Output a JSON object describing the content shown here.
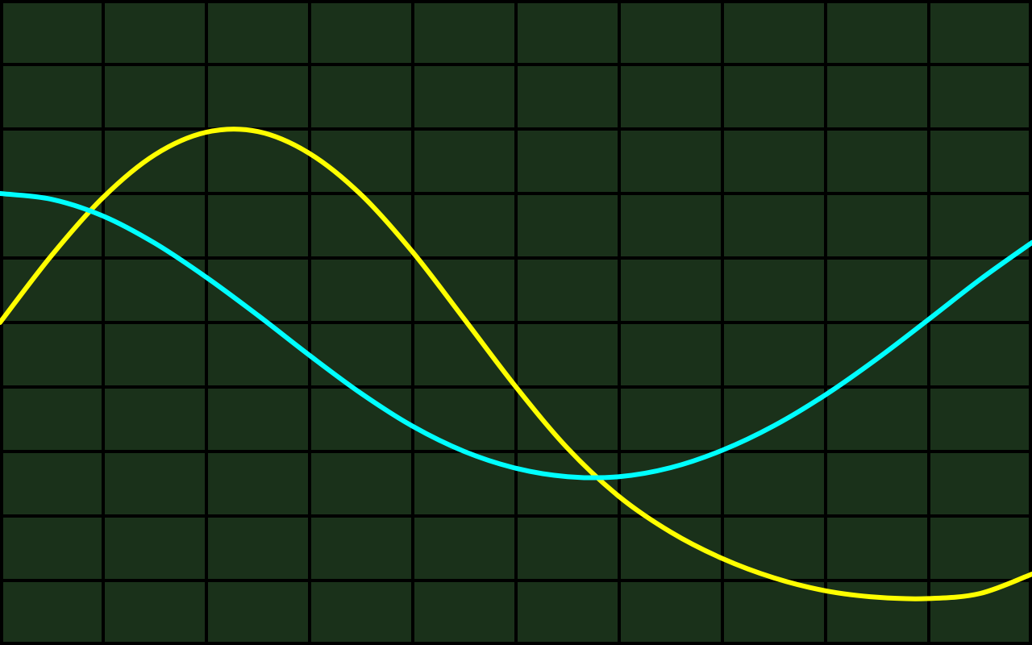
{
  "chart_data": {
    "type": "line",
    "title": "",
    "xlabel": "",
    "ylabel": "",
    "xlim": [
      0,
      10
    ],
    "ylim": [
      -5,
      5
    ],
    "grid": true,
    "legend": "none",
    "series": [
      {
        "color": "#ffff00",
        "x": [
          0,
          0.5,
          1,
          1.5,
          2,
          2.5,
          3,
          3.5,
          4,
          4.5,
          5,
          5.5,
          6,
          6.5,
          7,
          7.5,
          8,
          8.5,
          9,
          9.5,
          10
        ],
        "values": [
          0.0,
          1.04,
          1.94,
          2.6,
          2.95,
          2.96,
          2.62,
          1.98,
          1.09,
          0.05,
          -1.0,
          -1.95,
          -2.7,
          -3.25,
          -3.66,
          -3.96,
          -4.16,
          -4.26,
          -4.28,
          -4.2,
          -3.9
        ]
      },
      {
        "color": "#00ffff",
        "x": [
          0,
          0.5,
          1,
          1.5,
          2,
          2.5,
          3,
          3.5,
          4,
          4.5,
          5,
          5.5,
          6,
          6.5,
          7,
          7.5,
          8,
          8.5,
          9,
          9.5,
          10
        ],
        "values": [
          2.0,
          1.91,
          1.65,
          1.23,
          0.7,
          0.11,
          -0.51,
          -1.1,
          -1.61,
          -2.0,
          -2.26,
          -2.39,
          -2.39,
          -2.25,
          -1.98,
          -1.6,
          -1.12,
          -0.56,
          0.05,
          0.67,
          1.24
        ]
      }
    ]
  },
  "colors": {
    "background": "#1a311a",
    "grid": "#000000"
  }
}
